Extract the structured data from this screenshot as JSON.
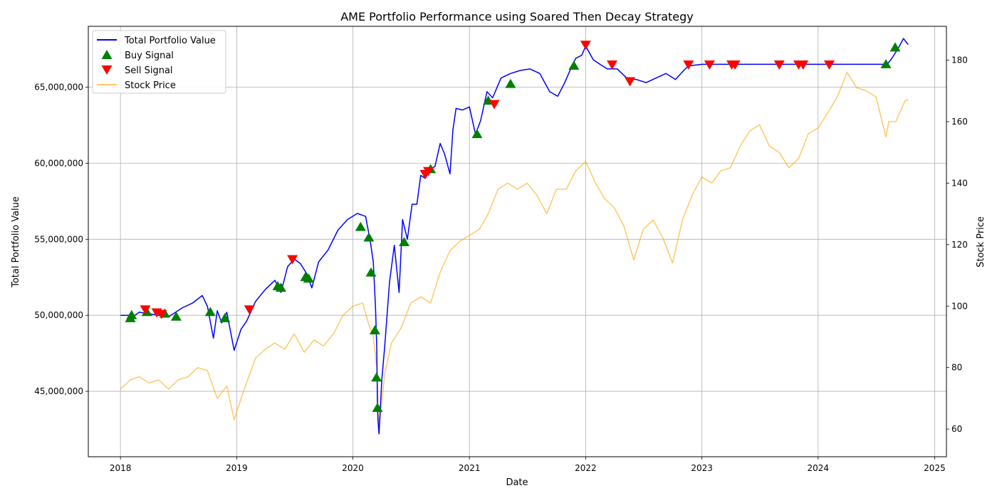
{
  "chart_data": {
    "type": "line",
    "title": "AME Portfolio Performance using Soared Then Decay Strategy",
    "xlabel": "Date",
    "ylabel": "Total Portfolio Value",
    "y2label": "Stock Price",
    "xlim": [
      "2017-09-22",
      "2025-02-07"
    ],
    "ylim": [
      40700000,
      69000000
    ],
    "y2lim": [
      51,
      191
    ],
    "x_ticks": [
      "2018",
      "2019",
      "2020",
      "2021",
      "2022",
      "2023",
      "2024",
      "2025"
    ],
    "y_ticks": [
      45000000,
      50000000,
      55000000,
      60000000,
      65000000
    ],
    "y_tick_labels": [
      "45,000,000",
      "50,000,000",
      "55,000,000",
      "60,000,000",
      "65,000,000"
    ],
    "y2_ticks": [
      60,
      80,
      100,
      120,
      140,
      160,
      180
    ],
    "y2_tick_labels": [
      "60",
      "80",
      "100",
      "120",
      "140",
      "160",
      "180"
    ],
    "grid": true,
    "legend_position": "upper-left",
    "colors": {
      "portfolio": "#0000ff",
      "buy": "#008000",
      "sell": "#ff0000",
      "stock": "#ffa500"
    },
    "series": [
      {
        "name": "Total Portfolio Value",
        "axis": "left",
        "x": [
          "2018-01-01",
          "2018-02-15",
          "2018-03-01",
          "2018-04-01",
          "2018-05-01",
          "2018-06-01",
          "2018-07-15",
          "2018-08-15",
          "2018-09-15",
          "2018-10-01",
          "2018-10-20",
          "2018-11-01",
          "2018-11-15",
          "2018-12-01",
          "2018-12-24",
          "2019-01-15",
          "2019-02-01",
          "2019-03-01",
          "2019-04-01",
          "2019-05-01",
          "2019-05-20",
          "2019-06-10",
          "2019-07-01",
          "2019-07-20",
          "2019-08-10",
          "2019-08-25",
          "2019-09-15",
          "2019-10-15",
          "2019-11-15",
          "2019-12-15",
          "2020-01-15",
          "2020-02-10",
          "2020-02-25",
          "2020-03-05",
          "2020-03-12",
          "2020-03-16",
          "2020-03-18",
          "2020-03-20",
          "2020-03-23",
          "2020-04-01",
          "2020-04-10",
          "2020-04-25",
          "2020-05-10",
          "2020-05-25",
          "2020-06-05",
          "2020-06-20",
          "2020-07-05",
          "2020-07-20",
          "2020-08-01",
          "2020-08-15",
          "2020-09-01",
          "2020-09-15",
          "2020-10-01",
          "2020-10-15",
          "2020-11-01",
          "2020-11-10",
          "2020-11-20",
          "2020-12-10",
          "2021-01-01",
          "2021-01-20",
          "2021-02-05",
          "2021-02-25",
          "2021-03-15",
          "2021-04-10",
          "2021-05-10",
          "2021-06-10",
          "2021-07-10",
          "2021-08-10",
          "2021-09-10",
          "2021-10-05",
          "2021-10-25",
          "2021-11-15",
          "2021-12-01",
          "2021-12-20",
          "2022-01-01",
          "2022-01-25",
          "2022-02-15",
          "2022-03-10",
          "2022-04-10",
          "2022-05-10",
          "2022-06-10",
          "2022-07-10",
          "2022-08-10",
          "2022-09-10",
          "2022-10-10",
          "2022-11-05",
          "2022-11-20",
          "2023-01-01",
          "2023-03-01",
          "2023-06-01",
          "2023-09-01",
          "2024-01-01",
          "2024-04-01",
          "2024-07-01",
          "2024-08-05",
          "2024-08-20",
          "2024-09-10",
          "2024-09-25",
          "2024-10-10"
        ],
        "values": [
          50000000,
          50000000,
          50200000,
          50100000,
          50000000,
          49900000,
          50500000,
          50800000,
          51300000,
          50600000,
          48500000,
          50300000,
          49500000,
          50200000,
          47700000,
          49100000,
          49600000,
          50900000,
          51700000,
          52300000,
          51500000,
          53200000,
          53700000,
          53400000,
          52700000,
          51800000,
          53500000,
          54300000,
          55600000,
          56300000,
          56700000,
          56500000,
          54800000,
          53500000,
          50500000,
          47800000,
          44000000,
          43000000,
          42200000,
          45800000,
          48000000,
          52200000,
          54600000,
          51500000,
          56300000,
          55000000,
          57300000,
          57300000,
          59200000,
          59000000,
          59600000,
          59800000,
          61300000,
          60600000,
          59300000,
          62200000,
          63600000,
          63500000,
          63700000,
          61900000,
          62800000,
          64700000,
          64300000,
          65600000,
          65900000,
          66100000,
          66200000,
          65900000,
          64700000,
          64400000,
          65200000,
          66200000,
          66900000,
          67100000,
          67700000,
          66800000,
          66500000,
          66200000,
          66200000,
          65600000,
          65500000,
          65300000,
          65600000,
          65900000,
          65500000,
          66100000,
          66400000,
          66500000,
          66500000,
          66500000,
          66500000,
          66500000,
          66500000,
          66500000,
          66500000,
          66900000,
          67600000,
          68200000,
          67800000
        ]
      },
      {
        "name": "Stock Price",
        "axis": "right",
        "x": [
          "2018-01-01",
          "2018-02-01",
          "2018-03-01",
          "2018-04-01",
          "2018-05-01",
          "2018-06-01",
          "2018-07-01",
          "2018-08-01",
          "2018-09-01",
          "2018-10-01",
          "2018-11-01",
          "2018-12-01",
          "2018-12-24",
          "2019-01-15",
          "2019-02-01",
          "2019-03-01",
          "2019-04-01",
          "2019-05-01",
          "2019-06-01",
          "2019-07-01",
          "2019-08-01",
          "2019-09-01",
          "2019-10-01",
          "2019-11-01",
          "2019-12-01",
          "2020-01-01",
          "2020-02-01",
          "2020-02-20",
          "2020-03-05",
          "2020-03-16",
          "2020-03-23",
          "2020-04-10",
          "2020-05-01",
          "2020-06-01",
          "2020-07-01",
          "2020-08-01",
          "2020-09-01",
          "2020-10-01",
          "2020-11-01",
          "2020-12-01",
          "2021-01-01",
          "2021-02-01",
          "2021-03-01",
          "2021-04-01",
          "2021-05-01",
          "2021-06-01",
          "2021-07-01",
          "2021-08-01",
          "2021-09-01",
          "2021-10-01",
          "2021-11-01",
          "2021-12-01",
          "2022-01-01",
          "2022-02-01",
          "2022-03-01",
          "2022-04-01",
          "2022-05-01",
          "2022-06-01",
          "2022-07-01",
          "2022-08-01",
          "2022-09-01",
          "2022-10-01",
          "2022-11-01",
          "2022-12-01",
          "2023-01-01",
          "2023-02-01",
          "2023-03-01",
          "2023-04-01",
          "2023-05-01",
          "2023-06-01",
          "2023-07-01",
          "2023-08-01",
          "2023-09-01",
          "2023-10-01",
          "2023-11-01",
          "2023-12-01",
          "2024-01-01",
          "2024-02-01",
          "2024-03-01",
          "2024-04-01",
          "2024-05-01",
          "2024-06-01",
          "2024-07-01",
          "2024-08-01",
          "2024-08-10",
          "2024-09-01",
          "2024-10-01",
          "2024-10-10"
        ],
        "values": [
          73,
          76,
          77,
          75,
          76,
          73,
          76,
          77,
          80,
          79,
          70,
          74,
          63,
          70,
          75,
          83,
          86,
          88,
          86,
          91,
          85,
          89,
          87,
          91,
          97,
          100,
          101,
          94,
          90,
          80,
          60,
          78,
          88,
          93,
          101,
          103,
          101,
          111,
          118,
          121,
          123,
          125,
          130,
          138,
          140,
          138,
          140,
          136,
          130,
          138,
          138,
          144,
          147,
          140,
          135,
          132,
          126,
          115,
          125,
          128,
          122,
          114,
          128,
          136,
          142,
          140,
          144,
          145,
          152,
          157,
          159,
          152,
          150,
          145,
          148,
          156,
          158,
          163,
          168,
          176,
          171,
          170,
          168,
          155,
          160,
          160,
          167,
          167
        ]
      }
    ],
    "buy_signals": {
      "name": "Buy Signal",
      "x": [
        "2018-02-01",
        "2018-02-05",
        "2018-03-25",
        "2018-05-20",
        "2018-06-25",
        "2018-10-10",
        "2018-11-25",
        "2019-05-10",
        "2019-05-20",
        "2019-08-05",
        "2019-08-15",
        "2020-01-25",
        "2020-02-20",
        "2020-02-27",
        "2020-03-10",
        "2020-03-15",
        "2020-03-18",
        "2020-06-10",
        "2020-09-01",
        "2021-01-25",
        "2021-03-01",
        "2021-05-10",
        "2021-11-25",
        "2024-08-01",
        "2024-08-30"
      ],
      "values": [
        49800000,
        50000000,
        50200000,
        50100000,
        49900000,
        50200000,
        49800000,
        51900000,
        51800000,
        52500000,
        52400000,
        55800000,
        55100000,
        52800000,
        49000000,
        45900000,
        43900000,
        54800000,
        59600000,
        61900000,
        64100000,
        65200000,
        66400000,
        66500000,
        67600000
      ]
    },
    "sell_signals": {
      "name": "Sell Signal",
      "x": [
        "2018-03-20",
        "2018-04-25",
        "2018-05-10",
        "2019-02-10",
        "2019-06-25",
        "2020-08-15",
        "2020-08-25",
        "2021-03-20",
        "2022-01-01",
        "2022-03-25",
        "2022-05-20",
        "2022-11-20",
        "2023-01-25",
        "2023-04-05",
        "2023-04-15",
        "2023-09-01",
        "2023-11-01",
        "2023-11-15",
        "2024-02-05"
      ],
      "values": [
        50400000,
        50200000,
        50100000,
        50400000,
        53700000,
        59300000,
        59500000,
        63900000,
        67800000,
        66500000,
        65400000,
        66500000,
        66500000,
        66500000,
        66500000,
        66500000,
        66500000,
        66500000,
        66500000
      ]
    }
  }
}
